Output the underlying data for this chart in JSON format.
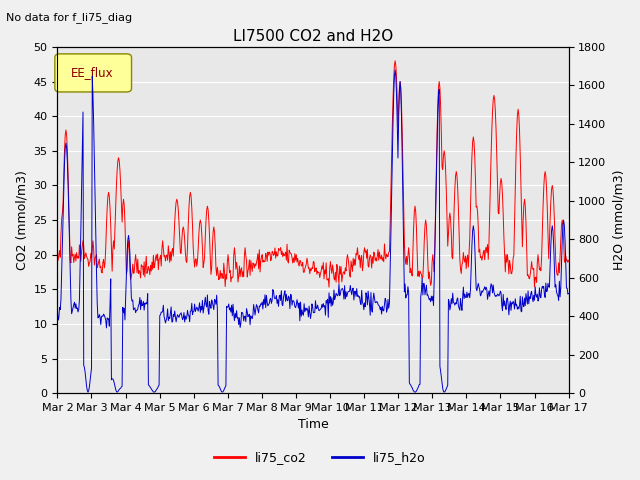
{
  "title": "LI7500 CO2 and H2O",
  "subtitle": "No data for f_li75_diag",
  "xlabel": "Time",
  "ylabel_left": "CO2 (mmol/m3)",
  "ylabel_right": "H2O (mmol/m3)",
  "ylim_left": [
    0,
    50
  ],
  "ylim_right": [
    0,
    1800
  ],
  "yticks_left": [
    0,
    5,
    10,
    15,
    20,
    25,
    30,
    35,
    40,
    45,
    50
  ],
  "yticks_right": [
    0,
    200,
    400,
    600,
    800,
    1000,
    1200,
    1400,
    1600,
    1800
  ],
  "xtick_labels": [
    "Mar 2",
    "Mar 3",
    "Mar 4",
    "Mar 5",
    "Mar 6",
    "Mar 7",
    "Mar 8",
    "Mar 9",
    "Mar 10",
    "Mar 11",
    "Mar 12",
    "Mar 13",
    "Mar 14",
    "Mar 15",
    "Mar 16",
    "Mar 17"
  ],
  "co2_color": "#ff0000",
  "h2o_color": "#0000cc",
  "legend_box_color": "#ffff99",
  "legend_box_label": "EE_flux",
  "background_color": "#f0f0f0",
  "plot_bg_color": "#e8e8e8",
  "grid_color": "#ffffff",
  "line_width": 0.7,
  "seed": 42,
  "figwidth": 6.4,
  "figheight": 4.8,
  "dpi": 100
}
